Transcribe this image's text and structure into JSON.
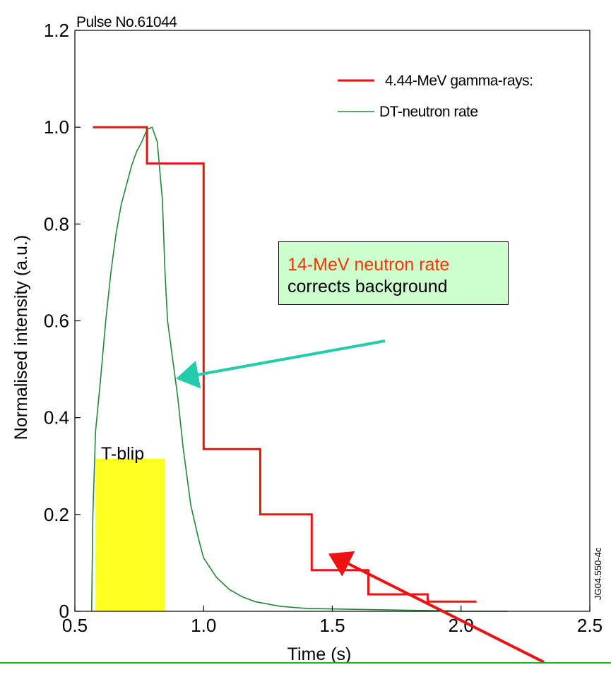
{
  "pulse_label": "Pulse No.61044",
  "figure_code": "JG04.550-4c",
  "callout": {
    "line1": "14-MeV neutron rate",
    "line2": "corrects background",
    "line1_color": "#ff3300",
    "background": "#ccffcc"
  },
  "blip_label": "T-blip",
  "colors": {
    "gamma": "#ee1111",
    "neutron": "#228833",
    "blip": "#ffff22",
    "arrow_teal": "#22ccaa",
    "arrow_red": "#ee1111"
  },
  "chart_data": {
    "type": "line",
    "xlabel": "Time (s)",
    "ylabel": "Normalised intensity (a.u.)",
    "xlim": [
      0.5,
      2.5
    ],
    "ylim": [
      0,
      1.2
    ],
    "xticks": [
      0.5,
      1.0,
      1.5,
      2.0,
      2.5
    ],
    "xtick_labels": [
      "0.5",
      "1.0",
      "1.5",
      "2.0",
      "2.5"
    ],
    "yticks": [
      0,
      0.2,
      0.4,
      0.6,
      0.8,
      1.0,
      1.2
    ],
    "ytick_labels": [
      "0",
      "0.2",
      "0.4",
      "0.6",
      "0.8",
      "1.0",
      "1.2"
    ],
    "legend_position": "top-right",
    "series": [
      {
        "name": "4.44-MeV gamma-rays:",
        "style": "step",
        "x": [
          0.57,
          0.78,
          0.78,
          1.0,
          1.0,
          1.22,
          1.22,
          1.42,
          1.42,
          1.64,
          1.64,
          1.87,
          1.87,
          2.06
        ],
        "y": [
          1.0,
          1.0,
          0.925,
          0.925,
          0.335,
          0.335,
          0.2,
          0.2,
          0.085,
          0.085,
          0.035,
          0.035,
          0.02,
          0.02
        ]
      },
      {
        "name": "DT-neutron rate",
        "style": "line",
        "x": [
          0.565,
          0.57,
          0.58,
          0.6,
          0.62,
          0.64,
          0.66,
          0.68,
          0.7,
          0.72,
          0.74,
          0.76,
          0.78,
          0.8,
          0.82,
          0.84,
          0.85,
          0.86,
          0.88,
          0.9,
          0.92,
          0.95,
          0.98,
          1.0,
          1.05,
          1.1,
          1.15,
          1.2,
          1.3,
          1.4,
          1.6,
          1.8,
          1.95,
          2.0,
          2.18
        ],
        "y": [
          0.0,
          0.2,
          0.37,
          0.48,
          0.6,
          0.7,
          0.78,
          0.84,
          0.88,
          0.92,
          0.95,
          0.97,
          0.995,
          1.0,
          0.97,
          0.85,
          0.7,
          0.6,
          0.52,
          0.44,
          0.34,
          0.22,
          0.15,
          0.11,
          0.07,
          0.045,
          0.03,
          0.02,
          0.01,
          0.006,
          0.004,
          0.002,
          0.001,
          0.0,
          0.0
        ]
      }
    ],
    "blip": {
      "x0": 0.58,
      "x1": 0.85,
      "y_top": 0.315
    }
  }
}
